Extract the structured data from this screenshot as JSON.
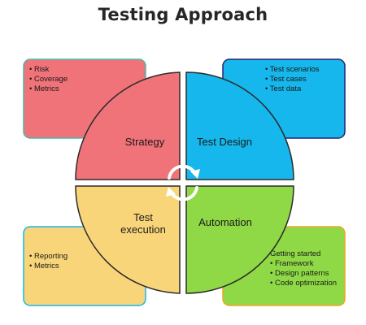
{
  "title": "Testing Approach",
  "quadrants": {
    "strategy": {
      "label_lines": [
        "Strategy"
      ],
      "color": "#f07379"
    },
    "design": {
      "label_lines": [
        "Test Design"
      ],
      "color": "#16b7ec"
    },
    "execution": {
      "label_lines": [
        "Test",
        "execution"
      ],
      "color": "#f9d57a"
    },
    "automation": {
      "label_lines": [
        "Automation"
      ],
      "color": "#8fd946"
    }
  },
  "boxes": {
    "strategy": {
      "items": [
        "• Risk",
        "• Coverage",
        "• Metrics"
      ],
      "fill": "#f07379",
      "border": "#4bb7a8"
    },
    "design": {
      "items": [
        "• Test scenarios",
        "• Test cases",
        "• Test data"
      ],
      "fill": "#16b7ec",
      "border": "#24246e"
    },
    "execution": {
      "items": [
        "• Reporting",
        "• Metrics"
      ],
      "fill": "#f9d57a",
      "border": "#16b7ec"
    },
    "automation": {
      "items": [
        "Getting started",
        "• Framework",
        "• Design patterns",
        "• Code optimization"
      ],
      "fill": "#8fd946",
      "border": "#f2a623"
    }
  },
  "cycle_icon": "rotation-arrows-icon",
  "outline_color": "#2b2b2b"
}
